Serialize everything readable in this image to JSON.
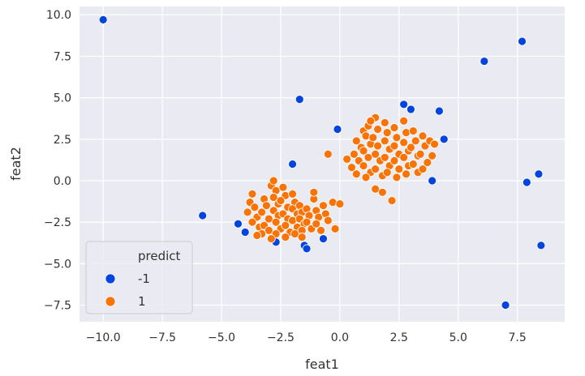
{
  "chart_data": {
    "type": "scatter",
    "title": "",
    "xlabel": "feat1",
    "ylabel": "feat2",
    "xlim": [
      -11.0,
      9.5
    ],
    "ylim": [
      -8.5,
      10.5
    ],
    "x_ticks": [
      -10.0,
      -7.5,
      -5.0,
      -2.5,
      0.0,
      2.5,
      5.0,
      7.5
    ],
    "x_tick_labels": [
      "−10.0",
      "−7.5",
      "−5.0",
      "−2.5",
      "0.0",
      "2.5",
      "5.0",
      "7.5"
    ],
    "y_ticks": [
      10.0,
      7.5,
      5.0,
      2.5,
      0.0,
      -2.5,
      -5.0,
      -7.5
    ],
    "y_tick_labels": [
      "10.0",
      "7.5",
      "5.0",
      "2.5",
      "0.0",
      "−2.5",
      "−5.0",
      "−7.5"
    ],
    "grid": true,
    "background": "#eaeaf2",
    "legend": {
      "title": "predict",
      "placement": "lower-left",
      "entries": [
        {
          "label": "-1",
          "color": "#0343df"
        },
        {
          "label": "1",
          "color": "#f97306"
        }
      ]
    },
    "series": [
      {
        "name": "-1",
        "color": "#0343df",
        "points": [
          [
            -10.0,
            9.7
          ],
          [
            -5.8,
            -2.1
          ],
          [
            -4.3,
            -2.6
          ],
          [
            -4.0,
            -3.1
          ],
          [
            -2.7,
            -3.7
          ],
          [
            -1.5,
            -3.9
          ],
          [
            -1.4,
            -4.1
          ],
          [
            -0.7,
            -3.5
          ],
          [
            -2.0,
            1.0
          ],
          [
            -1.7,
            4.9
          ],
          [
            -0.1,
            3.1
          ],
          [
            2.7,
            4.6
          ],
          [
            3.0,
            4.3
          ],
          [
            4.2,
            4.2
          ],
          [
            4.4,
            2.5
          ],
          [
            3.9,
            0.0
          ],
          [
            6.1,
            7.2
          ],
          [
            7.7,
            8.4
          ],
          [
            8.4,
            0.4
          ],
          [
            7.9,
            -0.1
          ],
          [
            8.5,
            -3.9
          ],
          [
            7.0,
            -7.5
          ]
        ]
      },
      {
        "name": "1",
        "color": "#f97306",
        "points": [
          [
            -3.7,
            -0.8
          ],
          [
            -3.8,
            -1.3
          ],
          [
            -3.6,
            -1.6
          ],
          [
            -3.9,
            -1.9
          ],
          [
            -3.5,
            -2.2
          ],
          [
            -3.7,
            -2.5
          ],
          [
            -3.4,
            -2.8
          ],
          [
            -3.2,
            -1.1
          ],
          [
            -3.1,
            -1.5
          ],
          [
            -3.3,
            -1.9
          ],
          [
            -3.0,
            -2.3
          ],
          [
            -3.2,
            -2.7
          ],
          [
            -3.0,
            -3.0
          ],
          [
            -3.3,
            -3.2
          ],
          [
            -2.9,
            -0.3
          ],
          [
            -2.8,
            0.0
          ],
          [
            -2.7,
            -0.6
          ],
          [
            -2.8,
            -1.0
          ],
          [
            -2.6,
            -1.4
          ],
          [
            -2.8,
            -1.8
          ],
          [
            -2.6,
            -2.1
          ],
          [
            -2.7,
            -2.5
          ],
          [
            -2.5,
            -2.9
          ],
          [
            -2.7,
            -3.2
          ],
          [
            -2.4,
            -0.4
          ],
          [
            -2.3,
            -0.9
          ],
          [
            -2.5,
            -1.2
          ],
          [
            -2.2,
            -1.6
          ],
          [
            -2.4,
            -2.0
          ],
          [
            -2.2,
            -2.3
          ],
          [
            -2.3,
            -2.7
          ],
          [
            -2.1,
            -3.1
          ],
          [
            -2.3,
            -3.4
          ],
          [
            -2.0,
            -0.8
          ],
          [
            -1.9,
            -1.3
          ],
          [
            -2.0,
            -1.7
          ],
          [
            -1.8,
            -2.0
          ],
          [
            -2.0,
            -2.4
          ],
          [
            -1.8,
            -2.8
          ],
          [
            -1.9,
            -3.2
          ],
          [
            -1.7,
            -1.5
          ],
          [
            -1.6,
            -1.9
          ],
          [
            -1.7,
            -2.3
          ],
          [
            -1.5,
            -2.6
          ],
          [
            -1.6,
            -3.0
          ],
          [
            -1.4,
            -1.7
          ],
          [
            -1.3,
            -2.1
          ],
          [
            -1.4,
            -2.5
          ],
          [
            -1.2,
            -2.9
          ],
          [
            -1.1,
            -1.1
          ],
          [
            -1.1,
            -0.7
          ],
          [
            -1.0,
            -1.8
          ],
          [
            -0.9,
            -2.2
          ],
          [
            -1.0,
            -2.6
          ],
          [
            -0.8,
            -3.0
          ],
          [
            -0.7,
            -1.5
          ],
          [
            -0.6,
            -2.0
          ],
          [
            -0.5,
            -2.4
          ],
          [
            -0.3,
            -1.3
          ],
          [
            -0.2,
            -2.9
          ],
          [
            0.0,
            -1.4
          ],
          [
            -3.5,
            -3.3
          ],
          [
            -2.9,
            -3.5
          ],
          [
            -1.6,
            -3.4
          ],
          [
            1.0,
            3.0
          ],
          [
            0.7,
            2.4
          ],
          [
            0.9,
            2.0
          ],
          [
            0.6,
            1.6
          ],
          [
            0.8,
            1.2
          ],
          [
            0.5,
            0.8
          ],
          [
            0.7,
            0.4
          ],
          [
            1.2,
            3.3
          ],
          [
            1.1,
            2.7
          ],
          [
            1.3,
            2.2
          ],
          [
            1.0,
            1.8
          ],
          [
            1.2,
            1.4
          ],
          [
            1.0,
            0.9
          ],
          [
            1.3,
            0.5
          ],
          [
            1.1,
            0.2
          ],
          [
            1.5,
            3.8
          ],
          [
            1.6,
            3.1
          ],
          [
            1.4,
            2.6
          ],
          [
            1.6,
            2.1
          ],
          [
            1.5,
            1.6
          ],
          [
            1.7,
            1.2
          ],
          [
            1.5,
            0.7
          ],
          [
            1.8,
            0.3
          ],
          [
            1.9,
            3.5
          ],
          [
            2.0,
            2.9
          ],
          [
            1.9,
            2.4
          ],
          [
            2.1,
            1.9
          ],
          [
            1.9,
            1.4
          ],
          [
            2.1,
            0.9
          ],
          [
            2.0,
            0.5
          ],
          [
            2.3,
            3.2
          ],
          [
            2.4,
            2.6
          ],
          [
            2.3,
            2.1
          ],
          [
            2.5,
            1.6
          ],
          [
            2.3,
            1.2
          ],
          [
            2.5,
            0.7
          ],
          [
            2.4,
            0.2
          ],
          [
            2.7,
            3.6
          ],
          [
            2.8,
            2.9
          ],
          [
            2.7,
            2.3
          ],
          [
            2.9,
            1.8
          ],
          [
            2.7,
            1.4
          ],
          [
            2.9,
            0.9
          ],
          [
            2.8,
            0.4
          ],
          [
            3.1,
            3.0
          ],
          [
            3.2,
            2.4
          ],
          [
            3.0,
            2.0
          ],
          [
            3.3,
            1.5
          ],
          [
            3.1,
            1.0
          ],
          [
            3.3,
            0.5
          ],
          [
            3.5,
            2.7
          ],
          [
            3.6,
            2.1
          ],
          [
            3.4,
            1.6
          ],
          [
            3.7,
            1.1
          ],
          [
            3.5,
            0.7
          ],
          [
            3.8,
            2.4
          ],
          [
            4.0,
            2.2
          ],
          [
            3.9,
            1.5
          ],
          [
            1.5,
            -0.5
          ],
          [
            1.8,
            -0.7
          ],
          [
            2.2,
            -1.2
          ],
          [
            0.3,
            1.3
          ],
          [
            -0.5,
            1.6
          ],
          [
            1.3,
            3.6
          ]
        ]
      }
    ]
  }
}
